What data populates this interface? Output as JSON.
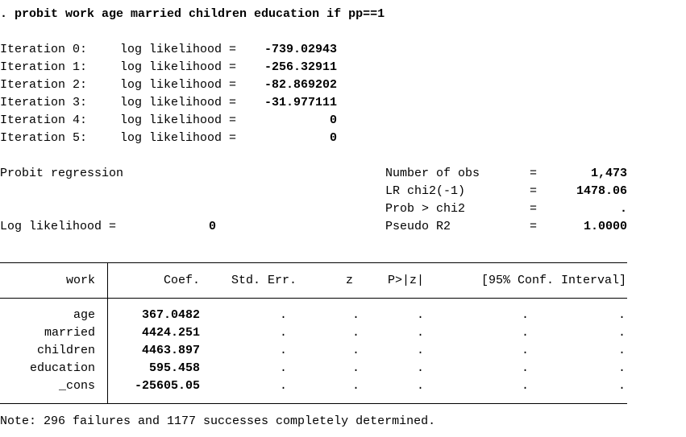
{
  "command": ". probit work age married children education if pp==1",
  "iterations": [
    {
      "label": "Iteration 0:",
      "text": "log likelihood =",
      "value": "-739.02943"
    },
    {
      "label": "Iteration 1:",
      "text": "log likelihood =",
      "value": "-256.32911"
    },
    {
      "label": "Iteration 2:",
      "text": "log likelihood =",
      "value": "-82.869202"
    },
    {
      "label": "Iteration 3:",
      "text": "log likelihood =",
      "value": "-31.977111"
    },
    {
      "label": "Iteration 4:",
      "text": "log likelihood =",
      "value": "0"
    },
    {
      "label": "Iteration 5:",
      "text": "log likelihood =",
      "value": "0"
    }
  ],
  "summary": {
    "title": "Probit regression",
    "loglik_label": "Log likelihood =",
    "loglik_value": "0",
    "stats": [
      {
        "label": "Number of obs",
        "eq": "=",
        "value": "1,473"
      },
      {
        "label": "LR chi2(-1)",
        "eq": "=",
        "value": "1478.06"
      },
      {
        "label": "Prob > chi2",
        "eq": "=",
        "value": "."
      },
      {
        "label": "Pseudo R2",
        "eq": "=",
        "value": "1.0000"
      }
    ]
  },
  "table": {
    "depvar": "work",
    "headers": {
      "coef": "Coef.",
      "se": "Std. Err.",
      "z": "z",
      "p": "P>|z|",
      "ci": "[95% Conf. Interval]"
    },
    "rows": [
      {
        "var": "age",
        "coef": "367.0482",
        "se": ".",
        "z": ".",
        "p": ".",
        "lo": ".",
        "hi": "."
      },
      {
        "var": "married",
        "coef": "4424.251",
        "se": ".",
        "z": ".",
        "p": ".",
        "lo": ".",
        "hi": "."
      },
      {
        "var": "children",
        "coef": "4463.897",
        "se": ".",
        "z": ".",
        "p": ".",
        "lo": ".",
        "hi": "."
      },
      {
        "var": "education",
        "coef": "595.458",
        "se": ".",
        "z": ".",
        "p": ".",
        "lo": ".",
        "hi": "."
      },
      {
        "var": "_cons",
        "coef": "-25605.05",
        "se": ".",
        "z": ".",
        "p": ".",
        "lo": ".",
        "hi": "."
      }
    ]
  },
  "note": "Note: 296 failures and 1177 successes completely determined."
}
